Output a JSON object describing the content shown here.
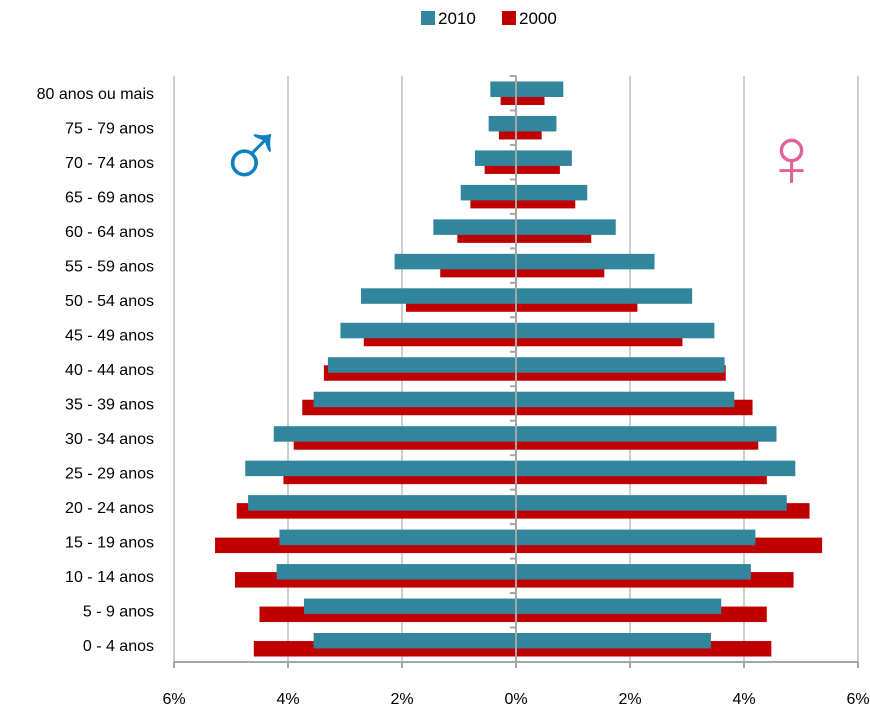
{
  "chart_data": {
    "type": "bar",
    "orientation": "horizontal",
    "layout": "population-pyramid",
    "categories": [
      "0 - 4 anos",
      "5 - 9 anos",
      "10 - 14 anos",
      "15 - 19 anos",
      "20 - 24 anos",
      "25 - 29 anos",
      "30 - 34 anos",
      "35 - 39 anos",
      "40 - 44 anos",
      "45 - 49 anos",
      "50 - 54 anos",
      "55 - 59 anos",
      "60 - 64 anos",
      "65 - 69 anos",
      "70 - 74 anos",
      "75 - 79 anos",
      "80 anos ou mais"
    ],
    "series": [
      {
        "name": "2010",
        "color": "#31859c",
        "male": [
          3.55,
          3.72,
          4.2,
          4.15,
          4.7,
          4.75,
          4.25,
          3.55,
          3.3,
          3.08,
          2.72,
          2.13,
          1.45,
          0.97,
          0.72,
          0.48,
          0.45
        ],
        "female": [
          3.42,
          3.6,
          4.12,
          4.2,
          4.75,
          4.9,
          4.57,
          3.83,
          3.66,
          3.48,
          3.09,
          2.43,
          1.75,
          1.25,
          0.98,
          0.71,
          0.83
        ]
      },
      {
        "name": "2000",
        "color": "#c00000",
        "male": [
          4.6,
          4.5,
          4.93,
          5.28,
          4.9,
          4.08,
          3.9,
          3.75,
          3.37,
          2.67,
          1.93,
          1.33,
          1.03,
          0.8,
          0.55,
          0.3,
          0.27
        ],
        "female": [
          4.48,
          4.4,
          4.87,
          5.37,
          5.15,
          4.4,
          4.25,
          4.15,
          3.68,
          2.92,
          2.13,
          1.55,
          1.32,
          1.04,
          0.77,
          0.45,
          0.5
        ]
      }
    ],
    "x_tick_labels": [
      "6%",
      "4%",
      "2%",
      "0%",
      "2%",
      "4%",
      "6%"
    ],
    "xlim": [
      -6,
      6
    ],
    "x_unit": "%",
    "grid": true,
    "legend_position": "top-center",
    "male_symbol": "♂",
    "female_symbol": "♀"
  }
}
